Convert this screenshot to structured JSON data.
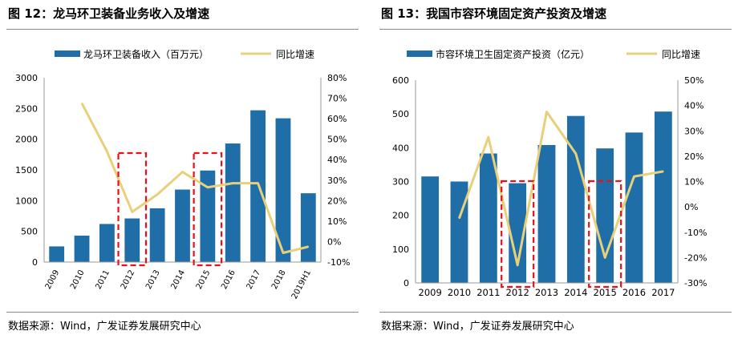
{
  "figures": [
    {
      "title": "图  12：龙马环卫装备业务收入及增速",
      "source": "数据来源：Wind，广发证券发展研究中心"
    },
    {
      "title": "图  13：我国市容环境固定资产投资及增速",
      "source": "数据来源：Wind，广发证券发展研究中心"
    }
  ],
  "colors": {
    "bar": "#1f6ea8",
    "line": "#e8d07a",
    "highlight": "#e8111a"
  },
  "chart_data": [
    {
      "type": "bar",
      "categories": [
        "2009",
        "2010",
        "2011",
        "2012",
        "2013",
        "2014",
        "2015",
        "2016",
        "2017",
        "2018",
        "2019H1"
      ],
      "series": [
        {
          "name": "龙马环卫装备收入（百万元）",
          "type": "bar",
          "axis": "left",
          "values": [
            255,
            430,
            620,
            710,
            875,
            1180,
            1490,
            1930,
            2470,
            2340,
            1120
          ]
        },
        {
          "name": "同比增速",
          "type": "line",
          "axis": "right",
          "values": [
            null,
            67.5,
            44,
            14.5,
            23,
            34,
            26.5,
            28.5,
            28.5,
            -5.5,
            -2.5
          ]
        }
      ],
      "y_left": {
        "min": 0,
        "max": 3000,
        "ticks": [
          0,
          500,
          1000,
          1500,
          2000,
          2500,
          3000
        ],
        "tick_labels": [
          "0",
          "500",
          "1000",
          "1500",
          "2000",
          "2500",
          "3000"
        ]
      },
      "y_right": {
        "min": -10,
        "max": 80,
        "ticks": [
          -10,
          0,
          10,
          20,
          30,
          40,
          50,
          60,
          70,
          80
        ],
        "tick_labels": [
          "-10%",
          "0%",
          "10%",
          "20%",
          "30%",
          "40%",
          "50%",
          "60%",
          "70%",
          "80%"
        ]
      },
      "highlight": [
        "2012",
        "2015"
      ],
      "legend": "top"
    },
    {
      "type": "bar",
      "categories": [
        "2009",
        "2010",
        "2011",
        "2012",
        "2013",
        "2014",
        "2015",
        "2016",
        "2017"
      ],
      "series": [
        {
          "name": "市容环境卫生固定资产投资（亿元）",
          "type": "bar",
          "axis": "left",
          "values": [
            315,
            300,
            383,
            295,
            408,
            494,
            398,
            445,
            507
          ]
        },
        {
          "name": "同比增速",
          "type": "line",
          "axis": "right",
          "values": [
            null,
            -4.5,
            27.5,
            -23,
            37.5,
            21,
            -20,
            12,
            14
          ]
        }
      ],
      "y_left": {
        "min": 0,
        "max": 600,
        "ticks": [
          0,
          100,
          200,
          300,
          400,
          500,
          600
        ],
        "tick_labels": [
          "0",
          "100",
          "200",
          "300",
          "400",
          "500",
          "600"
        ]
      },
      "y_right": {
        "min": -30,
        "max": 50,
        "ticks": [
          -30,
          -20,
          -10,
          0,
          10,
          20,
          30,
          40,
          50
        ],
        "tick_labels": [
          "-30%",
          "-20%",
          "-10%",
          "0%",
          "10%",
          "20%",
          "30%",
          "40%",
          "50%"
        ]
      },
      "highlight": [
        "2012",
        "2015"
      ],
      "legend": "top"
    }
  ]
}
